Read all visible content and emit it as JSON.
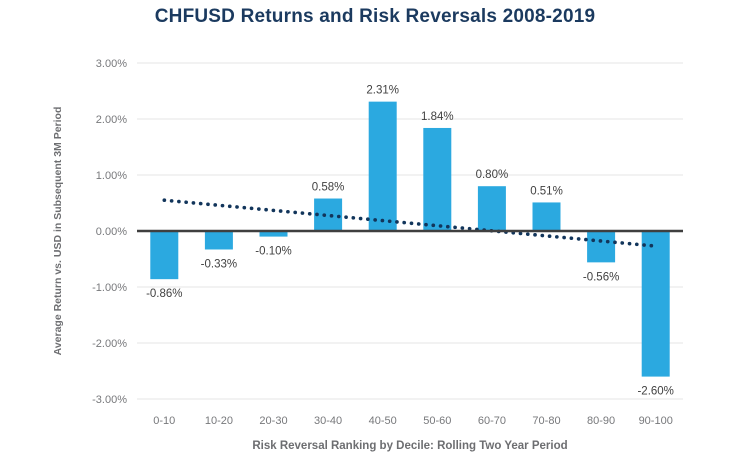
{
  "chart_data": {
    "type": "bar",
    "title": "CHFUSD Returns and Risk Reversals 2008-2019",
    "xlabel": "Risk Reversal Ranking by Decile: Rolling Two Year Period",
    "ylabel": "Average Return vs. USD in Subsequent 3M Period",
    "categories": [
      "0-10",
      "10-20",
      "20-30",
      "30-40",
      "40-50",
      "50-60",
      "60-70",
      "70-80",
      "80-90",
      "90-100"
    ],
    "values": [
      -0.86,
      -0.33,
      -0.1,
      0.58,
      2.31,
      1.84,
      0.8,
      0.51,
      -0.56,
      -2.6
    ],
    "data_labels": [
      "-0.86%",
      "-0.33%",
      "-0.10%",
      "0.58%",
      "2.31%",
      "1.84%",
      "0.80%",
      "0.51%",
      "-0.56%",
      "-2.60%"
    ],
    "y_ticks": [
      {
        "label": "3.00%",
        "value": 3
      },
      {
        "label": "2.00%",
        "value": 2
      },
      {
        "label": "1.00%",
        "value": 1
      },
      {
        "label": "0.00%",
        "value": 0
      },
      {
        "label": "-1.00%",
        "value": -1
      },
      {
        "label": "-2.00%",
        "value": -2
      },
      {
        "label": "-3.00%",
        "value": -3
      }
    ],
    "ylim": [
      -3,
      3
    ],
    "grid": true,
    "legend": false,
    "trendline": {
      "style": "dotted",
      "start_value": 0.55,
      "end_value": -0.27
    },
    "colors": {
      "bar": "#2BA9E0",
      "trendline": "#12355B",
      "title": "#1B3A5F",
      "grid": "#EBEBEB",
      "zero_line": "#3F3F3F",
      "tick_label": "#77787B",
      "data_label": "#414141",
      "axis_title": "#6D6E71"
    }
  }
}
